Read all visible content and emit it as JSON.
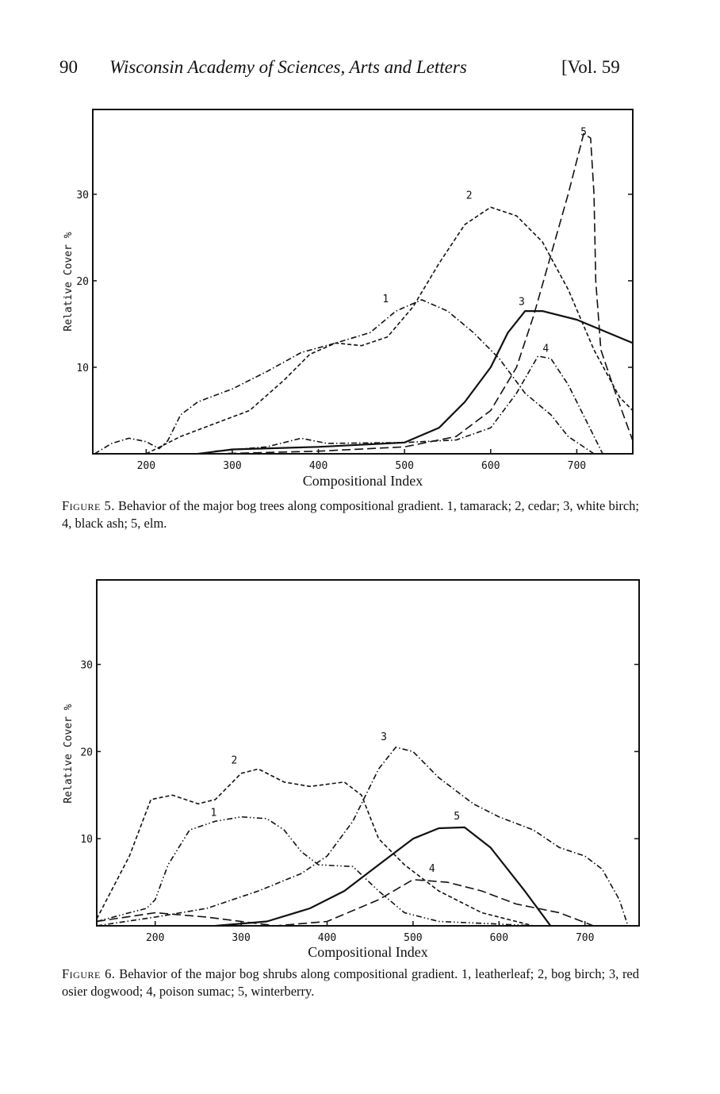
{
  "header": {
    "page_number": "90",
    "journal": "Wisconsin Academy of Sciences, Arts and Letters",
    "volume": "[Vol. 59"
  },
  "figures": [
    {
      "label": "Figure 5.",
      "caption": "Behavior of the major bog trees along compositional gradient. 1, tamarack; 2, cedar; 3, white birch; 4, black ash; 5, elm."
    },
    {
      "label": "Figure 6.",
      "caption": "Behavior of the major bog shrubs along compositional gradient. 1, leatherleaf; 2, bog birch; 3, red osier dogwood; 4, poison sumac; 5, winterberry."
    }
  ],
  "chart_data": [
    {
      "type": "line",
      "title": "Figure 5",
      "xlabel": "Compositional Index",
      "ylabel": "Relative Cover %",
      "xlim": [
        138,
        765
      ],
      "ylim": [
        0,
        39.8
      ],
      "xticks": [
        "200",
        "300",
        "400",
        "500",
        "600",
        "700"
      ],
      "yticks": [
        "10",
        "20",
        "30"
      ],
      "series": [
        {
          "name": "1",
          "species": "tamarack",
          "style": "dash-dot",
          "label_at": [
            478,
            17.5
          ],
          "points": [
            [
              140,
              0
            ],
            [
              160,
              1.2
            ],
            [
              180,
              1.8
            ],
            [
              200,
              1.4
            ],
            [
              215,
              0.6
            ],
            [
              225,
              1.5
            ],
            [
              240,
              4.5
            ],
            [
              260,
              6
            ],
            [
              300,
              7.5
            ],
            [
              340,
              9.5
            ],
            [
              380,
              11.7
            ],
            [
              420,
              12.8
            ],
            [
              460,
              14
            ],
            [
              490,
              16.5
            ],
            [
              520,
              17.8
            ],
            [
              550,
              16.5
            ],
            [
              580,
              14
            ],
            [
              610,
              11
            ],
            [
              640,
              7
            ],
            [
              670,
              4.5
            ],
            [
              690,
              2
            ],
            [
              720,
              0
            ]
          ]
        },
        {
          "name": "2",
          "species": "cedar",
          "style": "short-dash",
          "label_at": [
            575,
            29.5
          ],
          "points": [
            [
              200,
              0
            ],
            [
              240,
              2
            ],
            [
              280,
              3.5
            ],
            [
              320,
              5
            ],
            [
              360,
              8.5
            ],
            [
              390,
              11.5
            ],
            [
              420,
              12.8
            ],
            [
              450,
              12.5
            ],
            [
              480,
              13.5
            ],
            [
              510,
              17
            ],
            [
              540,
              22
            ],
            [
              570,
              26.5
            ],
            [
              600,
              28.5
            ],
            [
              630,
              27.5
            ],
            [
              660,
              24.5
            ],
            [
              690,
              19
            ],
            [
              720,
              12
            ],
            [
              750,
              6.5
            ],
            [
              765,
              5
            ]
          ]
        },
        {
          "name": "3",
          "species": "white birch",
          "style": "solid",
          "label_at": [
            636,
            17.2
          ],
          "points": [
            [
              260,
              0
            ],
            [
              300,
              0.5
            ],
            [
              400,
              0.8
            ],
            [
              500,
              1.3
            ],
            [
              540,
              3
            ],
            [
              570,
              6
            ],
            [
              600,
              10
            ],
            [
              620,
              14
            ],
            [
              640,
              16.5
            ],
            [
              660,
              16.5
            ],
            [
              700,
              15.5
            ],
            [
              765,
              12.8
            ]
          ]
        },
        {
          "name": "4",
          "species": "black ash",
          "style": "dash-dot",
          "label_at": [
            664,
            11.8
          ],
          "points": [
            [
              280,
              0.3
            ],
            [
              340,
              0.8
            ],
            [
              380,
              1.8
            ],
            [
              410,
              1.2
            ],
            [
              500,
              1.3
            ],
            [
              560,
              1.6
            ],
            [
              600,
              3
            ],
            [
              630,
              7
            ],
            [
              655,
              11.3
            ],
            [
              670,
              11
            ],
            [
              690,
              8
            ],
            [
              710,
              4
            ],
            [
              730,
              0
            ]
          ]
        },
        {
          "name": "5",
          "species": "elm",
          "style": "long-dash",
          "label_at": [
            708,
            36.8
          ],
          "points": [
            [
              280,
              0
            ],
            [
              400,
              0.3
            ],
            [
              500,
              0.8
            ],
            [
              560,
              2
            ],
            [
              600,
              5
            ],
            [
              630,
              10
            ],
            [
              650,
              16
            ],
            [
              670,
              23
            ],
            [
              690,
              30
            ],
            [
              708,
              37
            ],
            [
              716,
              36.5
            ],
            [
              720,
              30
            ],
            [
              722,
              20
            ],
            [
              728,
              12
            ],
            [
              745,
              7
            ],
            [
              765,
              1.5
            ]
          ]
        }
      ]
    },
    {
      "type": "line",
      "title": "Figure 6",
      "xlabel": "Compositional Index",
      "ylabel": "Relative Cover %",
      "xlim": [
        132,
        763
      ],
      "ylim": [
        0,
        39.7
      ],
      "xticks": [
        "200",
        "300",
        "400",
        "500",
        "600",
        "700"
      ],
      "yticks": [
        "10",
        "20",
        "30"
      ],
      "series": [
        {
          "name": "1",
          "species": "leatherleaf",
          "style": "dash-dot-dot",
          "label_at": [
            268,
            12.6
          ],
          "points": [
            [
              132,
              0.5
            ],
            [
              170,
              1.5
            ],
            [
              190,
              2
            ],
            [
              200,
              3
            ],
            [
              215,
              7
            ],
            [
              240,
              11
            ],
            [
              270,
              12
            ],
            [
              300,
              12.5
            ],
            [
              330,
              12.3
            ],
            [
              350,
              11
            ],
            [
              370,
              8.5
            ],
            [
              390,
              7
            ],
            [
              430,
              6.8
            ],
            [
              460,
              4
            ],
            [
              490,
              1.5
            ],
            [
              530,
              0.5
            ],
            [
              600,
              0.2
            ],
            [
              640,
              0
            ]
          ]
        },
        {
          "name": "2",
          "species": "bog birch",
          "style": "short-dash",
          "label_at": [
            292,
            18.6
          ],
          "points": [
            [
              132,
              0.8
            ],
            [
              170,
              8
            ],
            [
              195,
              14.5
            ],
            [
              220,
              15
            ],
            [
              250,
              14
            ],
            [
              270,
              14.5
            ],
            [
              300,
              17.5
            ],
            [
              320,
              18
            ],
            [
              350,
              16.5
            ],
            [
              380,
              16
            ],
            [
              420,
              16.5
            ],
            [
              440,
              15
            ],
            [
              460,
              10
            ],
            [
              490,
              7
            ],
            [
              530,
              4
            ],
            [
              580,
              1.5
            ],
            [
              620,
              0.5
            ],
            [
              640,
              0
            ]
          ]
        },
        {
          "name": "3",
          "species": "red osier dogwood",
          "style": "dash-dot",
          "label_at": [
            466,
            21.3
          ],
          "points": [
            [
              132,
              0
            ],
            [
              200,
              1
            ],
            [
              260,
              2
            ],
            [
              320,
              4
            ],
            [
              370,
              6
            ],
            [
              400,
              8
            ],
            [
              430,
              12
            ],
            [
              460,
              18
            ],
            [
              480,
              20.5
            ],
            [
              500,
              20
            ],
            [
              530,
              17
            ],
            [
              570,
              14
            ],
            [
              600,
              12.5
            ],
            [
              640,
              11
            ],
            [
              670,
              9
            ],
            [
              700,
              8
            ],
            [
              720,
              6.5
            ],
            [
              740,
              3
            ],
            [
              750,
              0
            ]
          ]
        },
        {
          "name": "4",
          "species": "poison sumac",
          "style": "long-dash",
          "label_at": [
            522,
            6.2
          ],
          "points": [
            [
              132,
              0.5
            ],
            [
              200,
              1.5
            ],
            [
              260,
              1
            ],
            [
              340,
              0
            ],
            [
              400,
              0.5
            ],
            [
              460,
              3
            ],
            [
              500,
              5.3
            ],
            [
              540,
              5
            ],
            [
              580,
              4
            ],
            [
              620,
              2.5
            ],
            [
              670,
              1.5
            ],
            [
              710,
              0
            ]
          ]
        },
        {
          "name": "5",
          "species": "winterberry",
          "style": "solid",
          "label_at": [
            551,
            12.2
          ],
          "points": [
            [
              270,
              0
            ],
            [
              330,
              0.5
            ],
            [
              380,
              2
            ],
            [
              420,
              4
            ],
            [
              460,
              7
            ],
            [
              500,
              10
            ],
            [
              530,
              11.2
            ],
            [
              560,
              11.3
            ],
            [
              590,
              9
            ],
            [
              630,
              4
            ],
            [
              660,
              0
            ]
          ]
        }
      ]
    }
  ]
}
